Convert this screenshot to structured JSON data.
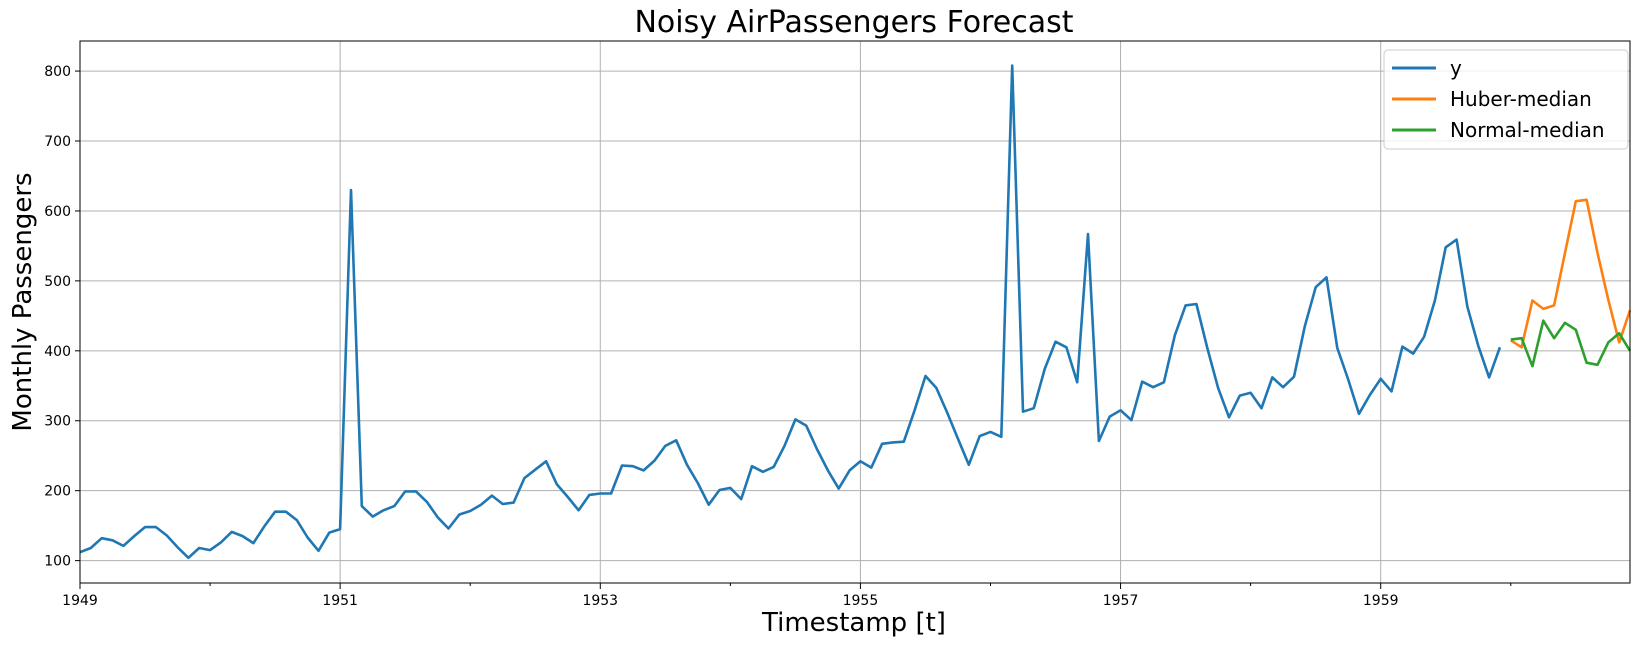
{
  "chart_data": {
    "type": "line",
    "title": "Noisy AirPassengers Forecast",
    "xlabel": "Timestamp [t]",
    "ylabel": "Monthly Passengers",
    "x_ticks": [
      "1949",
      "1951",
      "1953",
      "1955",
      "1957",
      "1959"
    ],
    "y_ticks": [
      100,
      200,
      300,
      400,
      500,
      600,
      700,
      800
    ],
    "xlim": [
      "1949-01",
      "1960-12"
    ],
    "ylim": [
      68,
      843
    ],
    "grid": true,
    "legend_position": "top-right",
    "series": [
      {
        "name": "y",
        "color": "#1f77b4",
        "start": "1949-01",
        "values": [
          112,
          118,
          132,
          129,
          121,
          135,
          148,
          148,
          136,
          119,
          104,
          118,
          115,
          126,
          141,
          135,
          125,
          149,
          170,
          170,
          158,
          133,
          114,
          140,
          145,
          630,
          178,
          163,
          172,
          178,
          199,
          199,
          184,
          162,
          146,
          166,
          171,
          180,
          193,
          181,
          183,
          218,
          230,
          242,
          209,
          191,
          172,
          194,
          196,
          196,
          236,
          235,
          229,
          243,
          264,
          272,
          237,
          211,
          180,
          201,
          204,
          188,
          235,
          227,
          234,
          264,
          302,
          293,
          259,
          229,
          203,
          229,
          242,
          233,
          267,
          269,
          270,
          315,
          364,
          347,
          312,
          274,
          237,
          278,
          284,
          277,
          808,
          313,
          318,
          374,
          413,
          405,
          355,
          567,
          271,
          306,
          315,
          301,
          356,
          348,
          355,
          422,
          465,
          467,
          404,
          347,
          305,
          336,
          340,
          318,
          362,
          348,
          363,
          435,
          491,
          505,
          404,
          359,
          310,
          337,
          360,
          342,
          406,
          396,
          420,
          472,
          548,
          559,
          463,
          407,
          362,
          405
        ]
      },
      {
        "name": "Huber-median",
        "color": "#ff7f0e",
        "start": "1960-01",
        "values": [
          415,
          405,
          472,
          460,
          465,
          540,
          614,
          616,
          540,
          473,
          412,
          458
        ]
      },
      {
        "name": "Normal-median",
        "color": "#2ca02c",
        "start": "1960-01",
        "values": [
          416,
          418,
          378,
          443,
          418,
          440,
          430,
          383,
          380,
          412,
          425,
          400
        ]
      }
    ]
  }
}
